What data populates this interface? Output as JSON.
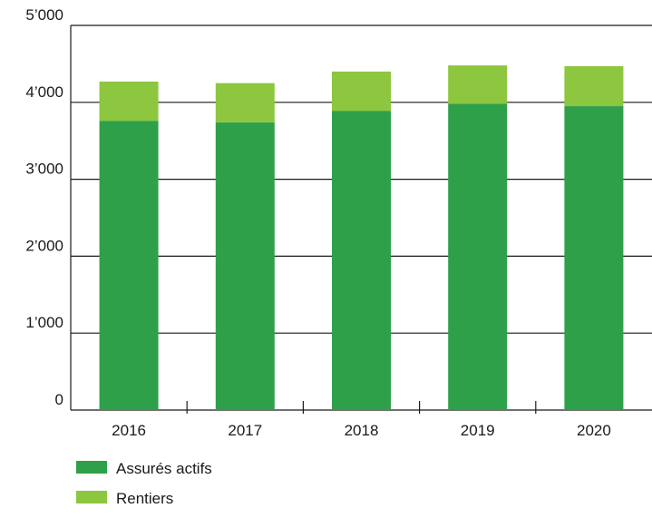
{
  "colors": {
    "series_active": "#2ea04a",
    "series_pensioners": "#8dc63f",
    "grid": "#1a1a1a",
    "text": "#1a1a1a"
  },
  "chart_data": {
    "type": "bar",
    "stacked": true,
    "categories": [
      "2016",
      "2017",
      "2018",
      "2019",
      "2020"
    ],
    "series": [
      {
        "name": "Assurés actifs",
        "values": [
          3760,
          3740,
          3890,
          3980,
          3950
        ],
        "color": "#2ea04a"
      },
      {
        "name": "Rentiers",
        "values": [
          510,
          510,
          510,
          500,
          520
        ],
        "color": "#8dc63f"
      }
    ],
    "title": "",
    "xlabel": "",
    "ylabel": "",
    "ylim": [
      0,
      5000
    ],
    "yticks": [
      0,
      1000,
      2000,
      3000,
      4000,
      5000
    ],
    "ytick_labels": [
      "0",
      "1’000",
      "2’000",
      "3’000",
      "4’000",
      "5’000"
    ],
    "grid": true,
    "legend_placement": "bottom-left"
  }
}
